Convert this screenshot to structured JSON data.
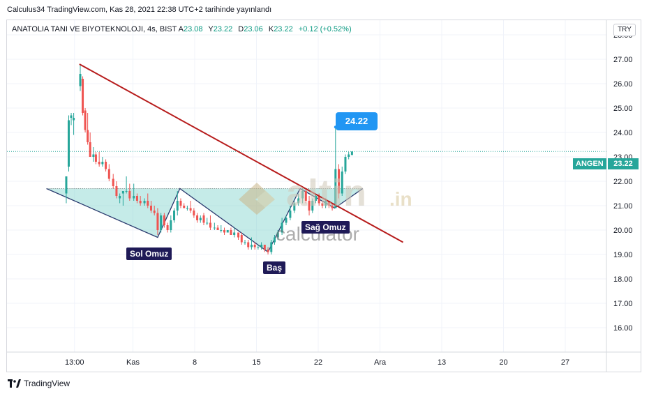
{
  "header": {
    "publish_info": "Calculus34 TradingView.com, Kas 28, 2021 22:38 UTC+2 tarihinde yayınlandı"
  },
  "symbol": {
    "name": "ANATOLIA TANI VE BIYOTEKNOLOJI, 4s, BIST",
    "ohlc": [
      {
        "k": "A",
        "v": "23.08"
      },
      {
        "k": "Y",
        "v": "23.22"
      },
      {
        "k": "D",
        "v": "23.06"
      },
      {
        "k": "K",
        "v": "23.22"
      }
    ],
    "change": "+0.12 (+0.52%)",
    "currency": "TRY"
  },
  "last_price": {
    "ticker": "ANGEN",
    "value": "23.22"
  },
  "callout": {
    "value": "24.22"
  },
  "pattern_labels": {
    "left_shoulder": "Sol Omuz",
    "head": "Baş",
    "right_shoulder": "Sağ Omuz"
  },
  "watermark": {
    "brand": "altin",
    "suffix": ".in",
    "sub": "calculator"
  },
  "footer": {
    "brand": "TradingView"
  },
  "colors": {
    "up": "#26a69a",
    "down": "#ef5350",
    "trendline": "#b71c1c",
    "pattern_fill": "#7fd3cc",
    "pattern_stroke": "#2a3a6e",
    "label_bg": "#1f1a57",
    "callout_bg": "#2196f3"
  },
  "chart_data": {
    "type": "candlestick",
    "y_ticks": [
      "28.00",
      "27.00",
      "26.00",
      "25.00",
      "24.00",
      "23.00",
      "22.00",
      "21.00",
      "20.00",
      "19.00",
      "18.00",
      "17.00",
      "16.00"
    ],
    "ylim": [
      15.0,
      28.6
    ],
    "x_ticks": [
      "13:00",
      "Kas",
      "8",
      "15",
      "22",
      "Ara",
      "13",
      "20",
      "27"
    ],
    "x_tick_positions": [
      0.4,
      7.5,
      15,
      22.5,
      30,
      37.5,
      45,
      52.5,
      60
    ],
    "xlim": [
      -7.8,
      65.0
    ],
    "candles": [
      {
        "x": -0.6,
        "o": 21.5,
        "h": 22.2,
        "l": 21.1,
        "c": 22.2
      },
      {
        "x": -0.3,
        "o": 22.6,
        "h": 24.7,
        "l": 22.4,
        "c": 24.5
      },
      {
        "x": 0.0,
        "o": 24.6,
        "h": 24.8,
        "l": 24.3,
        "c": 24.7
      },
      {
        "x": 0.3,
        "o": 24.5,
        "h": 24.8,
        "l": 23.9,
        "c": 24.6
      },
      {
        "x": 1.1,
        "o": 25.9,
        "h": 26.8,
        "l": 25.7,
        "c": 26.4
      },
      {
        "x": 1.4,
        "o": 26.2,
        "h": 26.3,
        "l": 24.7,
        "c": 24.8
      },
      {
        "x": 1.7,
        "o": 24.9,
        "h": 25.0,
        "l": 24.0,
        "c": 24.1
      },
      {
        "x": 2.0,
        "o": 24.1,
        "h": 24.8,
        "l": 23.5,
        "c": 23.6
      },
      {
        "x": 2.3,
        "o": 23.6,
        "h": 24.0,
        "l": 23.0,
        "c": 23.0
      },
      {
        "x": 2.7,
        "o": 23.0,
        "h": 23.4,
        "l": 22.8,
        "c": 23.1
      },
      {
        "x": 3.0,
        "o": 23.1,
        "h": 23.2,
        "l": 22.7,
        "c": 22.8
      },
      {
        "x": 3.4,
        "o": 22.8,
        "h": 23.2,
        "l": 22.6,
        "c": 22.7
      },
      {
        "x": 3.8,
        "o": 22.7,
        "h": 23.0,
        "l": 22.6,
        "c": 22.8
      },
      {
        "x": 4.2,
        "o": 22.8,
        "h": 22.9,
        "l": 22.4,
        "c": 22.5
      },
      {
        "x": 4.6,
        "o": 22.5,
        "h": 22.7,
        "l": 22.0,
        "c": 22.1
      },
      {
        "x": 5.1,
        "o": 22.1,
        "h": 22.3,
        "l": 21.7,
        "c": 21.8
      },
      {
        "x": 5.5,
        "o": 21.8,
        "h": 22.0,
        "l": 21.3,
        "c": 21.4
      },
      {
        "x": 5.9,
        "o": 21.3,
        "h": 21.5,
        "l": 21.1,
        "c": 21.4
      },
      {
        "x": 6.3,
        "o": 21.5,
        "h": 21.6,
        "l": 21.0,
        "c": 21.6
      },
      {
        "x": 6.7,
        "o": 21.6,
        "h": 22.2,
        "l": 21.5,
        "c": 21.6
      },
      {
        "x": 7.1,
        "o": 21.6,
        "h": 21.9,
        "l": 21.2,
        "c": 21.3
      },
      {
        "x": 7.6,
        "o": 21.3,
        "h": 21.9,
        "l": 21.2,
        "c": 21.4
      },
      {
        "x": 8.0,
        "o": 21.4,
        "h": 21.5,
        "l": 21.1,
        "c": 21.2
      },
      {
        "x": 8.4,
        "o": 21.2,
        "h": 21.4,
        "l": 21.0,
        "c": 21.1
      },
      {
        "x": 8.9,
        "o": 21.1,
        "h": 21.3,
        "l": 21.0,
        "c": 21.2
      },
      {
        "x": 9.3,
        "o": 21.2,
        "h": 21.5,
        "l": 20.9,
        "c": 21.0
      },
      {
        "x": 9.7,
        "o": 21.0,
        "h": 21.2,
        "l": 20.7,
        "c": 20.8
      },
      {
        "x": 10.1,
        "o": 20.8,
        "h": 21.0,
        "l": 20.6,
        "c": 20.7
      },
      {
        "x": 10.5,
        "o": 20.7,
        "h": 20.9,
        "l": 19.8,
        "c": 20.0
      },
      {
        "x": 10.9,
        "o": 20.0,
        "h": 20.7,
        "l": 19.9,
        "c": 20.6
      },
      {
        "x": 11.3,
        "o": 20.6,
        "h": 20.7,
        "l": 20.1,
        "c": 20.2
      },
      {
        "x": 11.7,
        "o": 20.2,
        "h": 20.3,
        "l": 19.9,
        "c": 20.0
      },
      {
        "x": 12.1,
        "o": 20.0,
        "h": 20.6,
        "l": 19.9,
        "c": 20.4
      },
      {
        "x": 12.5,
        "o": 20.4,
        "h": 20.9,
        "l": 20.3,
        "c": 20.8
      },
      {
        "x": 12.9,
        "o": 20.8,
        "h": 21.6,
        "l": 20.6,
        "c": 21.2
      },
      {
        "x": 13.3,
        "o": 21.2,
        "h": 21.3,
        "l": 20.9,
        "c": 21.0
      },
      {
        "x": 13.7,
        "o": 21.0,
        "h": 21.1,
        "l": 20.9,
        "c": 20.9
      },
      {
        "x": 14.1,
        "o": 20.9,
        "h": 21.0,
        "l": 20.8,
        "c": 20.9
      },
      {
        "x": 14.5,
        "o": 20.9,
        "h": 21.2,
        "l": 20.7,
        "c": 20.8
      },
      {
        "x": 14.9,
        "o": 20.8,
        "h": 20.9,
        "l": 20.5,
        "c": 20.6
      },
      {
        "x": 15.3,
        "o": 20.6,
        "h": 20.7,
        "l": 20.3,
        "c": 20.4
      },
      {
        "x": 15.7,
        "o": 20.4,
        "h": 20.6,
        "l": 20.3,
        "c": 20.5
      },
      {
        "x": 16.1,
        "o": 20.6,
        "h": 20.7,
        "l": 20.2,
        "c": 20.3
      },
      {
        "x": 16.5,
        "o": 20.3,
        "h": 20.5,
        "l": 20.2,
        "c": 20.3
      },
      {
        "x": 16.9,
        "o": 20.3,
        "h": 20.6,
        "l": 20.0,
        "c": 20.1
      },
      {
        "x": 17.4,
        "o": 20.1,
        "h": 20.3,
        "l": 20.0,
        "c": 20.1
      },
      {
        "x": 17.8,
        "o": 20.1,
        "h": 20.2,
        "l": 20.0,
        "c": 20.0
      },
      {
        "x": 18.2,
        "o": 20.0,
        "h": 20.2,
        "l": 19.9,
        "c": 20.0
      },
      {
        "x": 18.6,
        "o": 20.0,
        "h": 20.1,
        "l": 19.8,
        "c": 19.9
      },
      {
        "x": 19.0,
        "o": 19.9,
        "h": 20.0,
        "l": 19.9,
        "c": 20.0
      },
      {
        "x": 19.4,
        "o": 20.0,
        "h": 20.1,
        "l": 19.8,
        "c": 19.8
      },
      {
        "x": 19.8,
        "o": 19.8,
        "h": 20.1,
        "l": 19.7,
        "c": 19.9
      },
      {
        "x": 20.3,
        "o": 19.9,
        "h": 19.9,
        "l": 19.6,
        "c": 19.7
      },
      {
        "x": 20.7,
        "o": 19.8,
        "h": 19.9,
        "l": 19.4,
        "c": 19.5
      },
      {
        "x": 21.1,
        "o": 19.5,
        "h": 19.6,
        "l": 19.4,
        "c": 19.5
      },
      {
        "x": 21.5,
        "o": 19.5,
        "h": 19.6,
        "l": 19.2,
        "c": 19.3
      },
      {
        "x": 21.9,
        "o": 19.3,
        "h": 19.7,
        "l": 19.2,
        "c": 19.4
      },
      {
        "x": 22.3,
        "o": 19.4,
        "h": 19.5,
        "l": 19.2,
        "c": 19.3
      },
      {
        "x": 22.7,
        "o": 19.3,
        "h": 19.4,
        "l": 19.2,
        "c": 19.3
      },
      {
        "x": 23.1,
        "o": 19.3,
        "h": 19.5,
        "l": 19.2,
        "c": 19.4
      },
      {
        "x": 23.5,
        "o": 19.4,
        "h": 19.4,
        "l": 19.1,
        "c": 19.2
      },
      {
        "x": 23.9,
        "o": 19.2,
        "h": 19.3,
        "l": 19.0,
        "c": 19.1
      },
      {
        "x": 24.3,
        "o": 19.1,
        "h": 19.6,
        "l": 19.0,
        "c": 19.5
      },
      {
        "x": 24.7,
        "o": 19.5,
        "h": 19.8,
        "l": 19.4,
        "c": 19.7
      },
      {
        "x": 25.1,
        "o": 19.7,
        "h": 20.0,
        "l": 19.6,
        "c": 19.9
      },
      {
        "x": 25.6,
        "o": 19.9,
        "h": 20.5,
        "l": 19.8,
        "c": 20.3
      },
      {
        "x": 26.1,
        "o": 20.3,
        "h": 20.6,
        "l": 20.2,
        "c": 20.5
      },
      {
        "x": 26.6,
        "o": 20.5,
        "h": 21.0,
        "l": 20.4,
        "c": 20.8
      },
      {
        "x": 27.1,
        "o": 20.8,
        "h": 21.2,
        "l": 20.7,
        "c": 21.1
      },
      {
        "x": 27.6,
        "o": 21.1,
        "h": 21.5,
        "l": 21.0,
        "c": 21.3
      },
      {
        "x": 28.1,
        "o": 21.3,
        "h": 21.7,
        "l": 21.1,
        "c": 21.6
      },
      {
        "x": 28.5,
        "o": 21.6,
        "h": 21.7,
        "l": 21.1,
        "c": 21.2
      },
      {
        "x": 28.9,
        "o": 21.2,
        "h": 21.4,
        "l": 20.6,
        "c": 20.8
      },
      {
        "x": 29.3,
        "o": 20.8,
        "h": 21.3,
        "l": 20.7,
        "c": 21.2
      },
      {
        "x": 29.7,
        "o": 21.2,
        "h": 21.5,
        "l": 21.1,
        "c": 21.4
      },
      {
        "x": 30.1,
        "o": 21.4,
        "h": 21.5,
        "l": 21.0,
        "c": 21.1
      },
      {
        "x": 30.5,
        "o": 21.1,
        "h": 21.2,
        "l": 20.9,
        "c": 21.0
      },
      {
        "x": 30.9,
        "o": 21.0,
        "h": 21.3,
        "l": 20.9,
        "c": 21.2
      },
      {
        "x": 31.3,
        "o": 21.2,
        "h": 21.2,
        "l": 20.9,
        "c": 21.0
      },
      {
        "x": 31.7,
        "o": 21.0,
        "h": 21.1,
        "l": 20.8,
        "c": 20.9
      },
      {
        "x": 32.1,
        "o": 20.9,
        "h": 24.22,
        "l": 20.9,
        "c": 22.5
      },
      {
        "x": 32.5,
        "o": 22.5,
        "h": 22.7,
        "l": 21.3,
        "c": 21.5
      },
      {
        "x": 32.9,
        "o": 21.5,
        "h": 22.6,
        "l": 21.4,
        "c": 22.4
      },
      {
        "x": 33.3,
        "o": 22.4,
        "h": 23.1,
        "l": 22.3,
        "c": 23.0
      },
      {
        "x": 33.7,
        "o": 23.0,
        "h": 23.2,
        "l": 22.9,
        "c": 23.1
      },
      {
        "x": 34.1,
        "o": 23.08,
        "h": 23.22,
        "l": 23.06,
        "c": 23.22
      }
    ],
    "trendline": {
      "x1": 1.0,
      "y1": 26.8,
      "x2": 40.3,
      "y2": 19.5
    },
    "pattern_polygon": [
      [
        -3.0,
        21.7
      ],
      [
        10.5,
        19.7
      ],
      [
        13.2,
        21.7
      ],
      [
        23.9,
        19.1
      ],
      [
        27.8,
        21.7
      ],
      [
        32.0,
        20.9
      ],
      [
        35.4,
        21.7
      ]
    ],
    "pattern_neckline_y": 21.7,
    "last_price_line": 23.22,
    "callout_point": {
      "x": 32.1,
      "y": 24.22
    }
  }
}
